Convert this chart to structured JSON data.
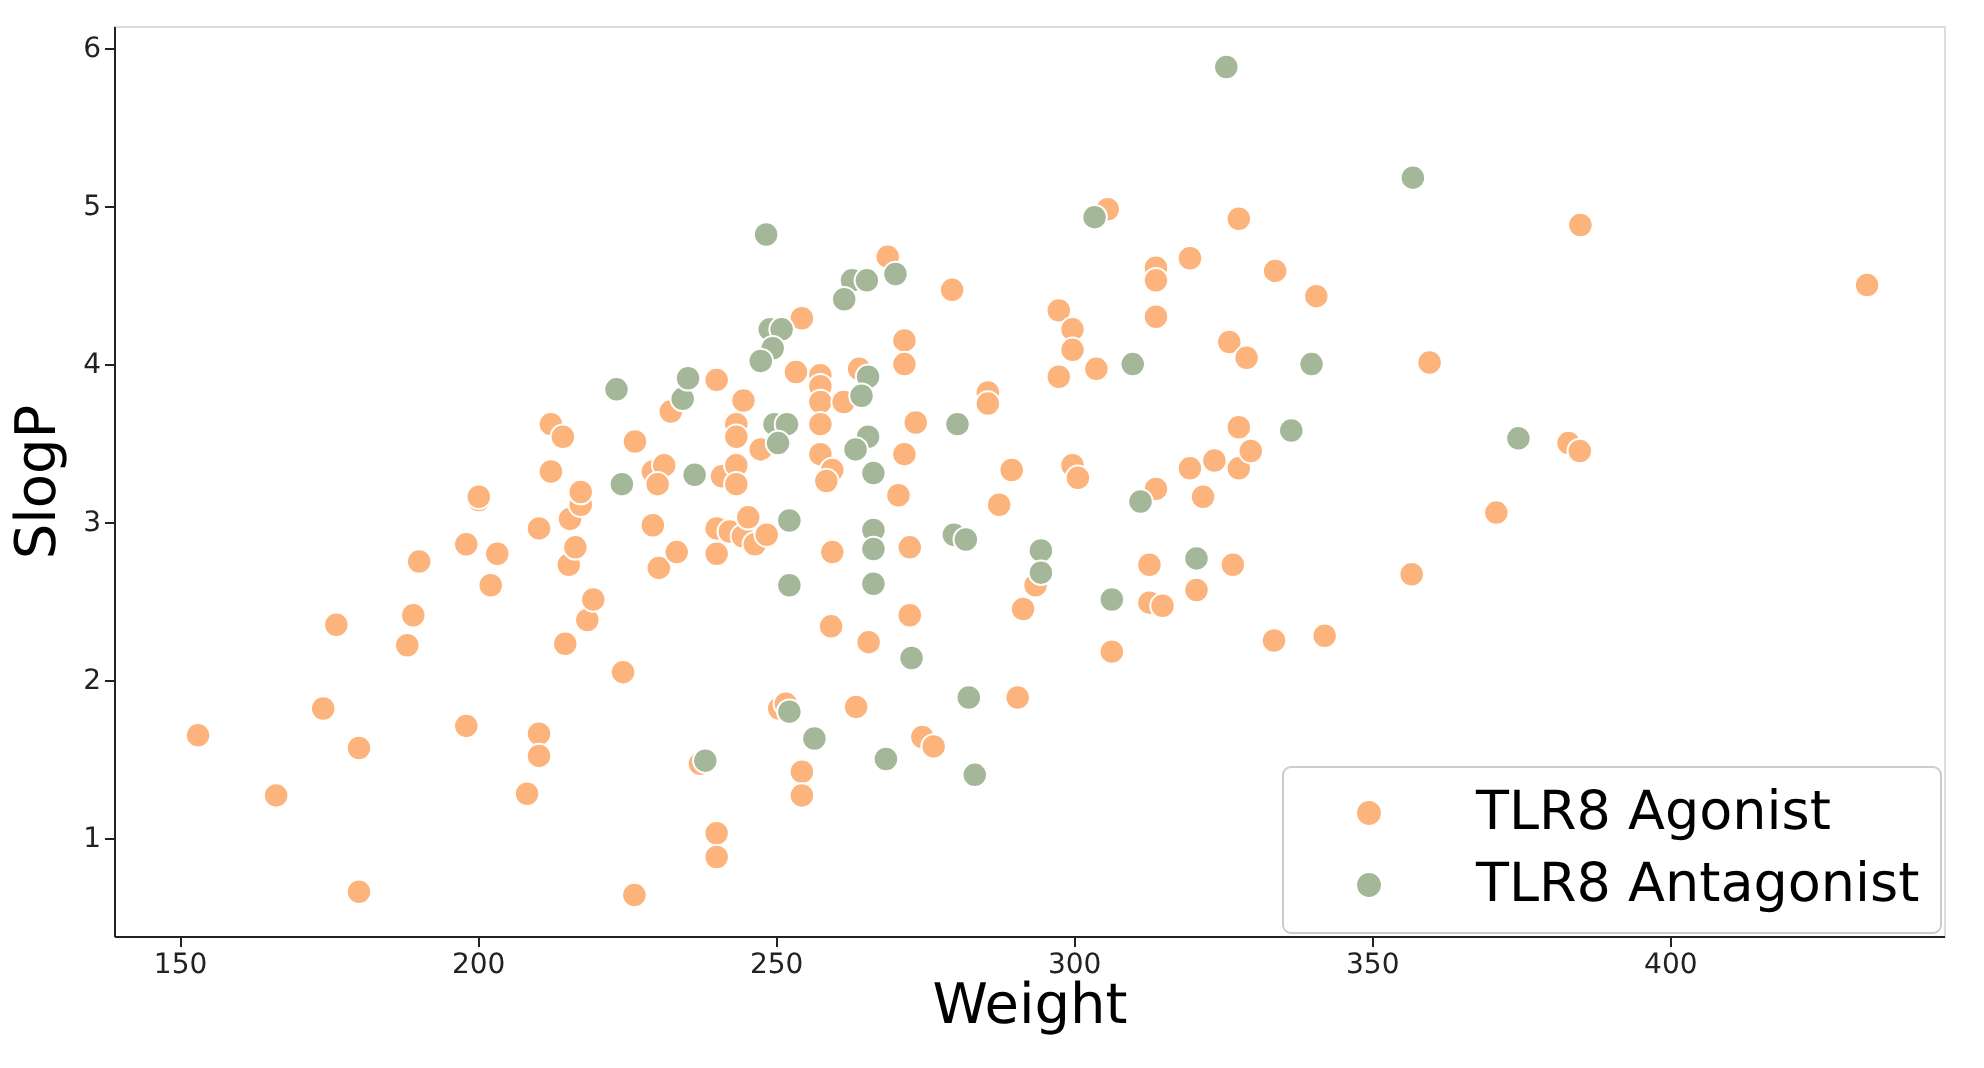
{
  "chart_data": {
    "type": "scatter",
    "xlabel": "Weight",
    "ylabel": "SlogP",
    "xlim": [
      139,
      446
    ],
    "ylim": [
      0.38,
      6.14
    ],
    "xticks": [
      150,
      200,
      250,
      300,
      350,
      400
    ],
    "yticks": [
      1,
      2,
      3,
      4,
      5,
      6
    ],
    "grid": false,
    "legend": "bottom right",
    "marker": "circle",
    "series": [
      {
        "name": "TLR8 Agonist",
        "color": "#fcb47c",
        "x": [
          153.1,
          166.2,
          174.1,
          176.3,
          180.1,
          180.1,
          188.2,
          189.2,
          190.2,
          198.1,
          198.1,
          202.2,
          203.3,
          200.2,
          208.3,
          210.3,
          210.3,
          210.3,
          214.7,
          215.3,
          216.4,
          215.5,
          217.3,
          218.4,
          219.4,
          224.4,
          226.3,
          229.4,
          230.4,
          233.4,
          237.3,
          240.1,
          240.1,
          240.1,
          240.1,
          200.2,
          212.3,
          214.3,
          212.3,
          217.3,
          226.4,
          232.4,
          240.1,
          229.4,
          231.3,
          230.2,
          241.0,
          305.7,
          327.7,
          268.8,
          319.5,
          313.8,
          313.8,
          333.8,
          340.7,
          279.6,
          254.4,
          244.6,
          243.4,
          243.4,
          253.4,
          257.5,
          257.5,
          257.5,
          264.0,
          261.4,
          257.5,
          271.6,
          271.6,
          273.5,
          285.6,
          285.6,
          297.5,
          299.8,
          299.8,
          297.5,
          303.8,
          313.8,
          326.1,
          329.0,
          247.5,
          257.5,
          259.5,
          258.5,
          271.6,
          270.6,
          289.6,
          287.5,
          299.8,
          300.7,
          313.8,
          319.5,
          323.6,
          327.7,
          327.7,
          329.7,
          321.7,
          243.4,
          243.4,
          385.0,
          433.1,
          359.7,
          383.0,
          384.9,
          370.9,
          242.3,
          244.5,
          246.5,
          248.5,
          245.4,
          259.5,
          272.5,
          259.3,
          265.6,
          272.5,
          293.6,
          291.5,
          306.4,
          312.7,
          312.7,
          314.9,
          320.6,
          326.7,
          333.6,
          342.1,
          250.6,
          251.7,
          263.5,
          274.6,
          276.5,
          290.6,
          254.4,
          254.4,
          356.7
        ],
        "values": [
          1.65,
          1.27,
          1.82,
          2.35,
          1.57,
          0.66,
          2.22,
          2.41,
          2.75,
          1.71,
          2.86,
          2.6,
          2.8,
          3.14,
          1.28,
          1.66,
          1.52,
          2.96,
          2.23,
          2.73,
          2.84,
          3.02,
          3.11,
          2.38,
          2.51,
          2.05,
          0.64,
          2.98,
          2.71,
          2.81,
          1.47,
          1.03,
          0.88,
          2.96,
          2.8,
          3.16,
          3.62,
          3.54,
          3.32,
          3.19,
          3.51,
          3.7,
          3.9,
          3.32,
          3.36,
          3.24,
          3.29,
          4.98,
          4.92,
          4.68,
          4.67,
          4.61,
          4.53,
          4.59,
          4.43,
          4.47,
          4.29,
          3.77,
          3.62,
          3.54,
          3.95,
          3.93,
          3.86,
          3.76,
          3.97,
          3.76,
          3.62,
          4.15,
          4.0,
          3.63,
          3.82,
          3.75,
          4.34,
          4.22,
          4.09,
          3.92,
          3.97,
          4.3,
          4.14,
          4.04,
          3.46,
          3.43,
          3.33,
          3.26,
          3.43,
          3.17,
          3.33,
          3.11,
          3.36,
          3.28,
          3.21,
          3.34,
          3.39,
          3.6,
          3.34,
          3.45,
          3.16,
          3.36,
          3.24,
          4.88,
          4.5,
          4.01,
          3.5,
          3.45,
          3.06,
          2.94,
          2.91,
          2.86,
          2.92,
          3.03,
          2.81,
          2.84,
          2.34,
          2.24,
          2.41,
          2.6,
          2.45,
          2.18,
          2.73,
          2.49,
          2.47,
          2.57,
          2.73,
          2.25,
          2.28,
          1.82,
          1.85,
          1.83,
          1.64,
          1.58,
          1.89,
          1.42,
          1.27,
          2.67
        ]
      },
      {
        "name": "TLR8 Antagonist",
        "color": "#a4b899",
        "x": [
          238.2,
          223.3,
          234.4,
          235.3,
          224.2,
          236.4,
          325.6,
          303.5,
          248.4,
          270.1,
          262.8,
          265.3,
          261.5,
          249.0,
          251.0,
          249.5,
          247.5,
          265.5,
          264.4,
          280.5,
          309.9,
          339.9,
          249.8,
          251.9,
          250.4,
          265.5,
          263.4,
          266.4,
          311.2,
          336.5,
          252.3,
          356.9,
          374.6,
          252.3,
          266.4,
          266.4,
          266.4,
          272.8,
          279.9,
          281.9,
          294.5,
          294.5,
          306.4,
          320.6,
          252.3,
          256.5,
          268.5,
          282.4,
          283.4
        ],
        "values": [
          1.49,
          3.84,
          3.78,
          3.91,
          3.24,
          3.3,
          5.88,
          4.93,
          4.82,
          4.57,
          4.53,
          4.53,
          4.41,
          4.22,
          4.22,
          4.1,
          4.02,
          3.92,
          3.8,
          3.62,
          4.0,
          4.0,
          3.62,
          3.62,
          3.5,
          3.54,
          3.46,
          3.31,
          3.13,
          3.58,
          3.01,
          5.18,
          3.53,
          2.6,
          2.95,
          2.83,
          2.61,
          2.14,
          2.92,
          2.89,
          2.82,
          2.68,
          2.51,
          2.77,
          1.8,
          1.63,
          1.5,
          1.89,
          1.4
        ]
      }
    ]
  }
}
